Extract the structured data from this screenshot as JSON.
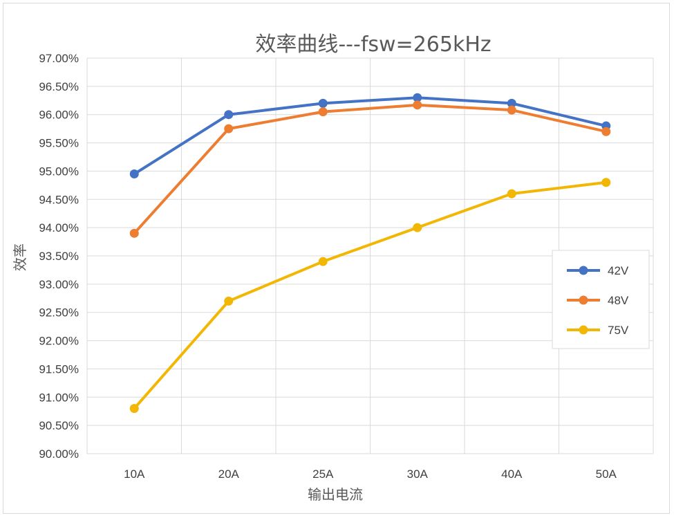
{
  "chart_data": {
    "type": "line",
    "title": "效率曲线---fsw=265kHz",
    "xlabel": "输出电流",
    "ylabel": "效率",
    "categories": [
      "10A",
      "20A",
      "25A",
      "30A",
      "40A",
      "50A"
    ],
    "ylim": [
      90.0,
      97.0
    ],
    "ytick_step": 0.5,
    "y_format": "percent_2dp",
    "grid": true,
    "legend_position": "right",
    "series": [
      {
        "name": "42V",
        "color": "#4472C4",
        "values": [
          94.95,
          96.0,
          96.2,
          96.3,
          96.2,
          95.8
        ]
      },
      {
        "name": "48V",
        "color": "#ED7D31",
        "values": [
          93.9,
          95.75,
          96.05,
          96.17,
          96.08,
          95.7
        ]
      },
      {
        "name": "75V",
        "color": "#F2B705",
        "values": [
          90.8,
          92.7,
          93.4,
          94.0,
          94.6,
          94.8
        ]
      }
    ]
  }
}
